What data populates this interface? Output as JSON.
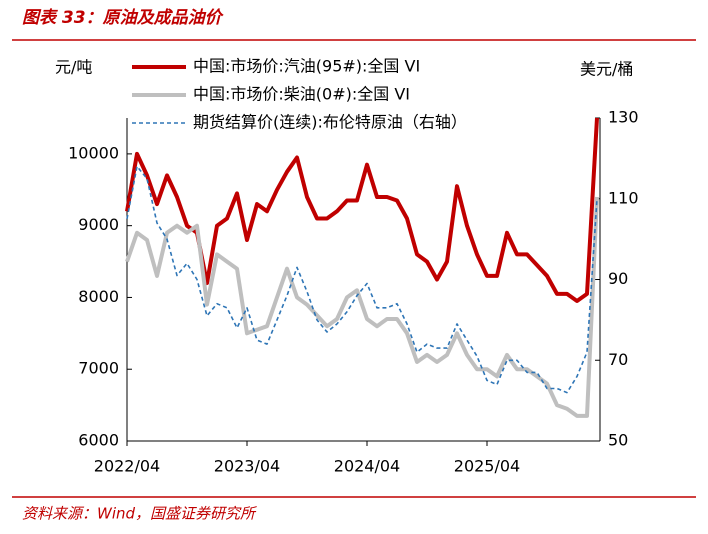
{
  "header": "图表 33：原油及成品油价",
  "source": "资料来源：Wind，国盛证券研究所",
  "chart_data": {
    "type": "line",
    "ylabel": "元/吨",
    "y2label": "美元/桶",
    "x": [
      "2022/04",
      "2022/05",
      "2022/06",
      "2022/07",
      "2022/08",
      "2022/09",
      "2022/10",
      "2022/11",
      "2022/12",
      "2023/01",
      "2023/02",
      "2023/03",
      "2023/04",
      "2023/05",
      "2023/06",
      "2023/07",
      "2023/08",
      "2023/09",
      "2023/10",
      "2023/11",
      "2023/12",
      "2024/01",
      "2024/02",
      "2024/03",
      "2024/04",
      "2024/05",
      "2024/06",
      "2024/07",
      "2024/08",
      "2024/09",
      "2024/10",
      "2024/11",
      "2024/12",
      "2025/01",
      "2025/02",
      "2025/03",
      "2025/04",
      "2025/05",
      "2025/06",
      "2025/07",
      "2025/08",
      "2025/09",
      "2025/10",
      "2025/11",
      "2025/12",
      "2026/01",
      "2026/02",
      "2026/03"
    ],
    "xlim": [
      "2022/04",
      "2026/03"
    ],
    "xticks": [
      "2022/04",
      "2023/04",
      "2024/04",
      "2025/04"
    ],
    "ylim": [
      6000,
      10500
    ],
    "yticks": [
      6000,
      7000,
      8000,
      9000,
      10000
    ],
    "y2lim": [
      50,
      130
    ],
    "y2ticks": [
      50,
      70,
      90,
      110,
      130
    ],
    "series": [
      {
        "name": "中国:市场价:汽油(95#):全国 VI",
        "color": "#c00000",
        "width": 4,
        "dash": false,
        "values": [
          9200,
          10000,
          9700,
          9300,
          9700,
          9400,
          9000,
          8900,
          8200,
          9000,
          9100,
          9450,
          8800,
          9300,
          9200,
          9500,
          9750,
          9950,
          9400,
          9100,
          9100,
          9200,
          9350,
          9350,
          9850,
          9400,
          9400,
          9350,
          9100,
          8600,
          8500,
          8250,
          8500,
          9550,
          9000,
          8600,
          8300,
          8300,
          8900,
          8600,
          8600,
          8450,
          8300,
          8050,
          8050,
          7950,
          8050,
          10500
        ]
      },
      {
        "name": "中国:市场价:柴油(0#):全国 VI",
        "color": "#bfbfbf",
        "width": 4,
        "dash": false,
        "values": [
          8500,
          8900,
          8800,
          8300,
          8900,
          9000,
          8900,
          9000,
          7900,
          8600,
          8500,
          8400,
          7500,
          7550,
          7600,
          8000,
          8400,
          8000,
          7900,
          7750,
          7600,
          7700,
          8000,
          8100,
          7700,
          7600,
          7700,
          7700,
          7500,
          7100,
          7200,
          7100,
          7200,
          7500,
          7200,
          7000,
          7000,
          6900,
          7200,
          7000,
          7000,
          6900,
          6800,
          6500,
          6450,
          6350,
          6350,
          9400
        ]
      },
      {
        "name": "期货结算价(连续):布伦特原油（右轴）",
        "color": "#2e75b6",
        "width": 1.6,
        "dash": true,
        "axis": "y2",
        "values": [
          105,
          118,
          115,
          104,
          100,
          91,
          94,
          90,
          81,
          84,
          83,
          78,
          83,
          75,
          74,
          80,
          86,
          93,
          87,
          80,
          77,
          79,
          82,
          86,
          89,
          83,
          83,
          84,
          79,
          72,
          74,
          73,
          73,
          79,
          75,
          71,
          65,
          64,
          70,
          70,
          67,
          67,
          63,
          63,
          62,
          66,
          72,
          110
        ]
      }
    ]
  }
}
